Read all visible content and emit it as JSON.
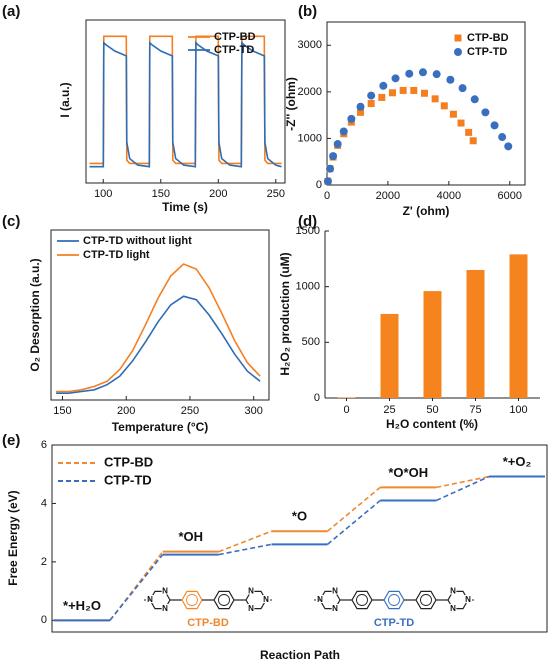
{
  "chart_data": [
    {
      "type": "line",
      "panel_label": "(a)",
      "xlabel": "Time (s)",
      "ylabel": "I (a.u.)",
      "x": [
        88,
        100,
        100.5,
        102,
        110,
        120,
        120.5,
        123,
        130,
        140,
        140.5,
        142,
        150,
        160,
        160.5,
        163,
        170,
        180,
        180.5,
        182,
        190,
        200,
        200.5,
        203,
        210,
        220,
        220.5,
        222,
        230,
        240,
        240.5,
        243,
        250,
        255
      ],
      "xlim": [
        85,
        258
      ],
      "xticks": [
        100,
        150,
        200,
        250
      ],
      "ylim": [
        0,
        1
      ],
      "legend": "upper right",
      "series": [
        {
          "name": "CTP-BD",
          "color": "#f47f20",
          "values": [
            0.12,
            0.12,
            0.9,
            0.9,
            0.9,
            0.9,
            0.14,
            0.12,
            0.12,
            0.12,
            0.9,
            0.9,
            0.9,
            0.9,
            0.14,
            0.12,
            0.12,
            0.12,
            0.9,
            0.9,
            0.9,
            0.9,
            0.14,
            0.12,
            0.12,
            0.12,
            0.9,
            0.9,
            0.9,
            0.9,
            0.14,
            0.12,
            0.12,
            0.12
          ]
        },
        {
          "name": "CTP-TD",
          "color": "#2e6db4",
          "values": [
            0.1,
            0.1,
            0.86,
            0.85,
            0.81,
            0.78,
            0.25,
            0.15,
            0.11,
            0.1,
            0.86,
            0.85,
            0.81,
            0.78,
            0.25,
            0.15,
            0.11,
            0.1,
            0.86,
            0.85,
            0.81,
            0.78,
            0.25,
            0.15,
            0.11,
            0.1,
            0.86,
            0.85,
            0.81,
            0.78,
            0.25,
            0.15,
            0.11,
            0.1
          ]
        }
      ]
    },
    {
      "type": "scatter",
      "panel_label": "(b)",
      "xlabel": "Z' (ohm)",
      "ylabel": "-Z'' (ohm)",
      "xlim": [
        0,
        6500
      ],
      "xticks": [
        0,
        2000,
        4000,
        6000
      ],
      "ylim": [
        0,
        3500
      ],
      "yticks": [
        0,
        1000,
        2000,
        3000
      ],
      "legend": "upper right",
      "series": [
        {
          "name": "CTP-BD",
          "color": "#f47f20",
          "marker": "square",
          "x": [
            30,
            100,
            200,
            350,
            550,
            800,
            1100,
            1450,
            1800,
            2150,
            2500,
            2850,
            3200,
            3550,
            3850,
            4150,
            4400,
            4650,
            4800
          ],
          "values": [
            80,
            350,
            600,
            850,
            1100,
            1350,
            1560,
            1750,
            1880,
            1980,
            2030,
            2030,
            1970,
            1850,
            1700,
            1520,
            1330,
            1130,
            950
          ]
        },
        {
          "name": "CTP-TD",
          "color": "#3a6fc0",
          "marker": "circle",
          "x": [
            30,
            100,
            200,
            350,
            550,
            800,
            1100,
            1450,
            1850,
            2250,
            2700,
            3150,
            3600,
            4050,
            4450,
            4850,
            5200,
            5500,
            5750,
            5950
          ],
          "values": [
            80,
            350,
            620,
            880,
            1150,
            1420,
            1680,
            1920,
            2130,
            2290,
            2390,
            2420,
            2380,
            2260,
            2080,
            1840,
            1560,
            1280,
            1030,
            830
          ]
        }
      ]
    },
    {
      "type": "line",
      "panel_label": "(c)",
      "xlabel": "Temperature (°C)",
      "ylabel": "O₂ Desorption (a.u.)",
      "x": [
        145,
        155,
        165,
        175,
        185,
        195,
        205,
        215,
        225,
        235,
        245,
        255,
        265,
        275,
        285,
        295,
        305
      ],
      "xlim": [
        141,
        312
      ],
      "xticks": [
        150,
        200,
        250,
        300
      ],
      "ylim": [
        0,
        1
      ],
      "legend": "upper left",
      "series": [
        {
          "name": "CTP-TD without light",
          "color": "#2e6db4",
          "values": [
            0.04,
            0.04,
            0.05,
            0.06,
            0.09,
            0.14,
            0.23,
            0.34,
            0.46,
            0.56,
            0.61,
            0.59,
            0.5,
            0.39,
            0.27,
            0.17,
            0.11
          ]
        },
        {
          "name": "CTP-TD light",
          "color": "#f47f20",
          "values": [
            0.05,
            0.05,
            0.06,
            0.08,
            0.11,
            0.18,
            0.29,
            0.44,
            0.6,
            0.73,
            0.8,
            0.77,
            0.66,
            0.51,
            0.35,
            0.22,
            0.14
          ]
        }
      ]
    },
    {
      "type": "bar",
      "panel_label": "(d)",
      "xlabel": "H₂O content (%)",
      "ylabel": "H₂O₂ production (uM)",
      "categories": [
        "0",
        "25",
        "50",
        "75",
        "100"
      ],
      "values": [
        5,
        755,
        960,
        1150,
        1290
      ],
      "color": "#f5841f",
      "ylim": [
        0,
        1500
      ],
      "yticks": [
        0,
        500,
        1000,
        1500
      ]
    },
    {
      "type": "step",
      "panel_label": "(e)",
      "xlabel": "Reaction Path",
      "ylabel": "Free Energy (eV)",
      "categories": [
        "*+H₂O",
        "*OH",
        "*O",
        "*O*OH",
        "*+O₂"
      ],
      "ylim": [
        -0.4,
        6
      ],
      "yticks": [
        0,
        2,
        4,
        6
      ],
      "legend": "upper left",
      "series": [
        {
          "name": "CTP-BD",
          "color": "#f0892e",
          "values": [
            0,
            2.35,
            3.05,
            4.55,
            4.92
          ]
        },
        {
          "name": "CTP-TD",
          "color": "#3a6fc0",
          "values": [
            0,
            2.25,
            2.6,
            4.1,
            4.92
          ]
        }
      ],
      "structures": [
        {
          "label": "CTP-BD"
        },
        {
          "label": "CTP-TD"
        }
      ],
      "atom_label": "N"
    }
  ]
}
